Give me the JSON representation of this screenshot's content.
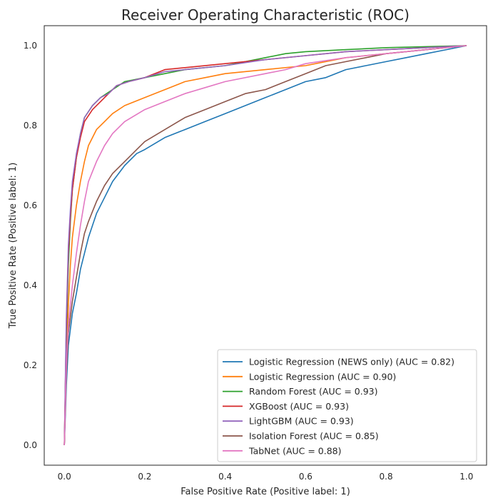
{
  "chart_data": {
    "type": "line",
    "title": "Receiver Operating Characteristic (ROC)",
    "xlabel": "False Positive Rate (Positive label: 1)",
    "ylabel": "True Positive Rate (Positive label: 1)",
    "xlim": [
      -0.05,
      1.05
    ],
    "ylim": [
      -0.05,
      1.05
    ],
    "xticks": [
      0.0,
      0.2,
      0.4,
      0.6,
      0.8,
      1.0
    ],
    "yticks": [
      0.0,
      0.2,
      0.4,
      0.6,
      0.8,
      1.0
    ],
    "xtick_labels": [
      "0.0",
      "0.2",
      "0.4",
      "0.6",
      "0.8",
      "1.0"
    ],
    "ytick_labels": [
      "0.0",
      "0.2",
      "0.4",
      "0.6",
      "0.8",
      "1.0"
    ],
    "grid": false,
    "legend_position": "lower-right",
    "series": [
      {
        "name": "Logistic Regression (NEWS only) (AUC = 0.82)",
        "color": "#1f77b4",
        "points": [
          [
            0,
            0
          ],
          [
            0.005,
            0.15
          ],
          [
            0.01,
            0.25
          ],
          [
            0.02,
            0.33
          ],
          [
            0.03,
            0.38
          ],
          [
            0.04,
            0.44
          ],
          [
            0.05,
            0.48
          ],
          [
            0.06,
            0.52
          ],
          [
            0.07,
            0.55
          ],
          [
            0.08,
            0.58
          ],
          [
            0.1,
            0.62
          ],
          [
            0.12,
            0.66
          ],
          [
            0.15,
            0.7
          ],
          [
            0.18,
            0.73
          ],
          [
            0.2,
            0.74
          ],
          [
            0.25,
            0.77
          ],
          [
            0.3,
            0.79
          ],
          [
            0.35,
            0.81
          ],
          [
            0.4,
            0.83
          ],
          [
            0.45,
            0.85
          ],
          [
            0.5,
            0.87
          ],
          [
            0.55,
            0.89
          ],
          [
            0.6,
            0.91
          ],
          [
            0.65,
            0.92
          ],
          [
            0.7,
            0.94
          ],
          [
            0.75,
            0.95
          ],
          [
            0.8,
            0.96
          ],
          [
            0.85,
            0.97
          ],
          [
            0.9,
            0.98
          ],
          [
            0.95,
            0.99
          ],
          [
            1.0,
            1.0
          ]
        ]
      },
      {
        "name": "Logistic Regression (AUC = 0.90)",
        "color": "#ff7f0e",
        "points": [
          [
            0,
            0
          ],
          [
            0.005,
            0.22
          ],
          [
            0.01,
            0.35
          ],
          [
            0.015,
            0.45
          ],
          [
            0.02,
            0.52
          ],
          [
            0.03,
            0.6
          ],
          [
            0.04,
            0.66
          ],
          [
            0.05,
            0.71
          ],
          [
            0.06,
            0.75
          ],
          [
            0.08,
            0.79
          ],
          [
            0.1,
            0.81
          ],
          [
            0.12,
            0.83
          ],
          [
            0.15,
            0.85
          ],
          [
            0.2,
            0.87
          ],
          [
            0.25,
            0.89
          ],
          [
            0.3,
            0.91
          ],
          [
            0.35,
            0.92
          ],
          [
            0.4,
            0.93
          ],
          [
            0.5,
            0.94
          ],
          [
            0.6,
            0.95
          ],
          [
            0.7,
            0.97
          ],
          [
            0.8,
            0.98
          ],
          [
            0.9,
            0.99
          ],
          [
            1.0,
            1.0
          ]
        ]
      },
      {
        "name": "Random Forest (AUC = 0.93)",
        "color": "#2ca02c",
        "points": [
          [
            0,
            0
          ],
          [
            0.005,
            0.28
          ],
          [
            0.01,
            0.45
          ],
          [
            0.015,
            0.56
          ],
          [
            0.02,
            0.64
          ],
          [
            0.03,
            0.72
          ],
          [
            0.04,
            0.78
          ],
          [
            0.05,
            0.82
          ],
          [
            0.07,
            0.85
          ],
          [
            0.09,
            0.87
          ],
          [
            0.12,
            0.89
          ],
          [
            0.15,
            0.91
          ],
          [
            0.2,
            0.92
          ],
          [
            0.25,
            0.93
          ],
          [
            0.3,
            0.94
          ],
          [
            0.4,
            0.95
          ],
          [
            0.5,
            0.97
          ],
          [
            0.55,
            0.98
          ],
          [
            0.6,
            0.985
          ],
          [
            0.7,
            0.99
          ],
          [
            0.8,
            0.995
          ],
          [
            1.0,
            1.0
          ]
        ]
      },
      {
        "name": "XGBoost (AUC = 0.93)",
        "color": "#d62728",
        "points": [
          [
            0,
            0
          ],
          [
            0.005,
            0.3
          ],
          [
            0.01,
            0.48
          ],
          [
            0.015,
            0.57
          ],
          [
            0.02,
            0.64
          ],
          [
            0.03,
            0.72
          ],
          [
            0.04,
            0.77
          ],
          [
            0.05,
            0.81
          ],
          [
            0.07,
            0.84
          ],
          [
            0.09,
            0.86
          ],
          [
            0.11,
            0.88
          ],
          [
            0.13,
            0.9
          ],
          [
            0.16,
            0.91
          ],
          [
            0.2,
            0.92
          ],
          [
            0.25,
            0.94
          ],
          [
            0.3,
            0.945
          ],
          [
            0.4,
            0.955
          ],
          [
            0.5,
            0.965
          ],
          [
            0.6,
            0.975
          ],
          [
            0.7,
            0.985
          ],
          [
            0.8,
            0.99
          ],
          [
            0.9,
            0.995
          ],
          [
            1.0,
            1.0
          ]
        ]
      },
      {
        "name": "LightGBM (AUC = 0.93)",
        "color": "#9467bd",
        "points": [
          [
            0,
            0
          ],
          [
            0.005,
            0.32
          ],
          [
            0.01,
            0.5
          ],
          [
            0.015,
            0.59
          ],
          [
            0.02,
            0.66
          ],
          [
            0.03,
            0.73
          ],
          [
            0.04,
            0.78
          ],
          [
            0.05,
            0.82
          ],
          [
            0.07,
            0.85
          ],
          [
            0.09,
            0.87
          ],
          [
            0.11,
            0.88
          ],
          [
            0.13,
            0.9
          ],
          [
            0.16,
            0.91
          ],
          [
            0.2,
            0.92
          ],
          [
            0.25,
            0.935
          ],
          [
            0.3,
            0.94
          ],
          [
            0.4,
            0.95
          ],
          [
            0.5,
            0.965
          ],
          [
            0.6,
            0.975
          ],
          [
            0.7,
            0.985
          ],
          [
            0.8,
            0.99
          ],
          [
            0.9,
            0.995
          ],
          [
            1.0,
            1.0
          ]
        ]
      },
      {
        "name": "Isolation Forest (AUC = 0.85)",
        "color": "#8c564b",
        "points": [
          [
            0,
            0
          ],
          [
            0.005,
            0.18
          ],
          [
            0.01,
            0.28
          ],
          [
            0.02,
            0.36
          ],
          [
            0.03,
            0.42
          ],
          [
            0.04,
            0.48
          ],
          [
            0.05,
            0.53
          ],
          [
            0.06,
            0.56
          ],
          [
            0.08,
            0.61
          ],
          [
            0.1,
            0.65
          ],
          [
            0.12,
            0.68
          ],
          [
            0.15,
            0.71
          ],
          [
            0.18,
            0.74
          ],
          [
            0.2,
            0.76
          ],
          [
            0.25,
            0.79
          ],
          [
            0.3,
            0.82
          ],
          [
            0.35,
            0.84
          ],
          [
            0.4,
            0.86
          ],
          [
            0.45,
            0.88
          ],
          [
            0.5,
            0.89
          ],
          [
            0.55,
            0.91
          ],
          [
            0.6,
            0.93
          ],
          [
            0.65,
            0.95
          ],
          [
            0.7,
            0.96
          ],
          [
            0.75,
            0.97
          ],
          [
            0.8,
            0.98
          ],
          [
            0.85,
            0.985
          ],
          [
            0.9,
            0.99
          ],
          [
            1.0,
            1.0
          ]
        ]
      },
      {
        "name": "TabNet (AUC = 0.88)",
        "color": "#e377c2",
        "points": [
          [
            0,
            0
          ],
          [
            0.005,
            0.2
          ],
          [
            0.01,
            0.3
          ],
          [
            0.02,
            0.4
          ],
          [
            0.03,
            0.48
          ],
          [
            0.04,
            0.55
          ],
          [
            0.05,
            0.61
          ],
          [
            0.06,
            0.66
          ],
          [
            0.08,
            0.71
          ],
          [
            0.1,
            0.75
          ],
          [
            0.12,
            0.78
          ],
          [
            0.15,
            0.81
          ],
          [
            0.2,
            0.84
          ],
          [
            0.25,
            0.86
          ],
          [
            0.3,
            0.88
          ],
          [
            0.35,
            0.895
          ],
          [
            0.4,
            0.91
          ],
          [
            0.5,
            0.93
          ],
          [
            0.55,
            0.94
          ],
          [
            0.6,
            0.955
          ],
          [
            0.7,
            0.97
          ],
          [
            0.8,
            0.98
          ],
          [
            0.9,
            0.99
          ],
          [
            1.0,
            1.0
          ]
        ]
      }
    ]
  }
}
